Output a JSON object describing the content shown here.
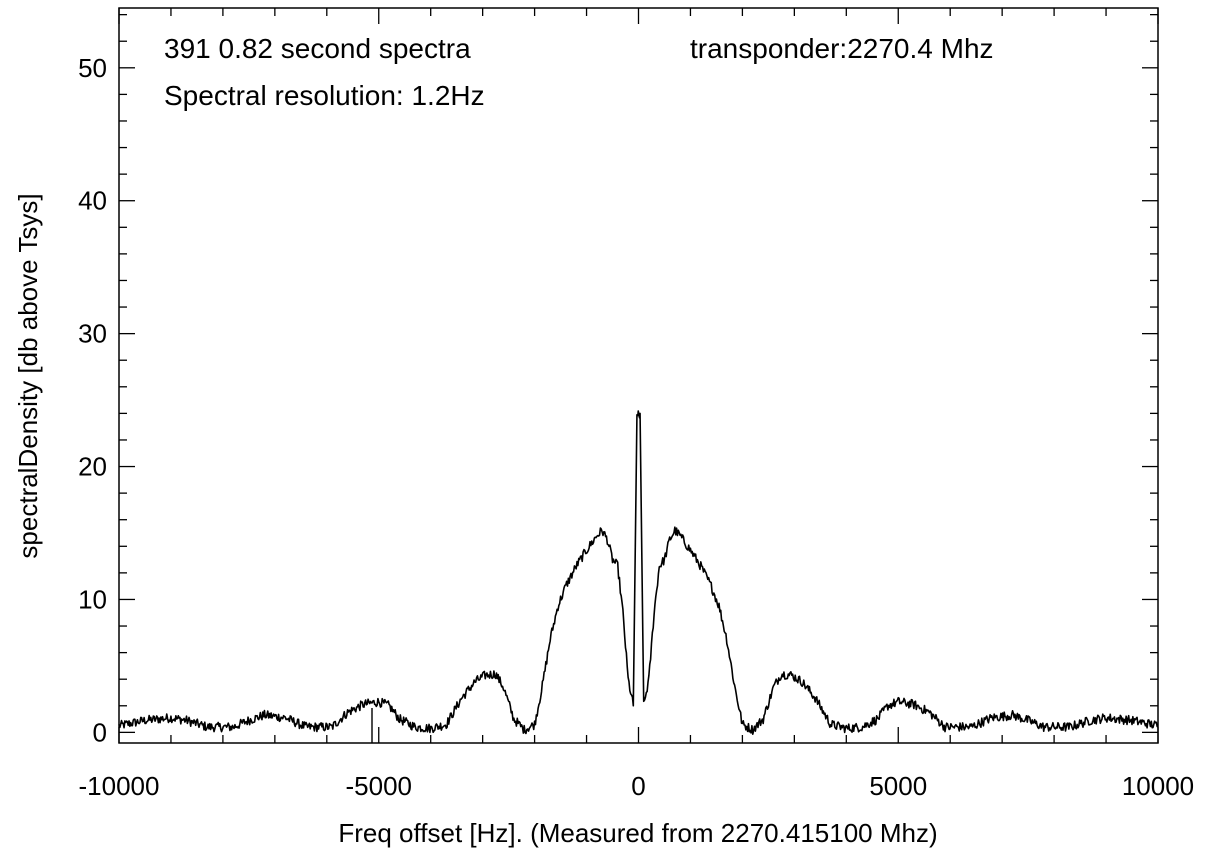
{
  "chart_data": {
    "type": "line",
    "title": "",
    "xlabel": "Freq offset [Hz]. (Measured from 2270.415100 Mhz)",
    "ylabel": "spectralDensity [db above Tsys]",
    "xlim": [
      -10000,
      10000
    ],
    "ylim": [
      -0.8,
      54.5
    ],
    "x_ticks": [
      -10000,
      -5000,
      0,
      5000,
      10000
    ],
    "x_tick_labels": [
      "-10000",
      "-5000",
      "0",
      "5000",
      "10000"
    ],
    "y_ticks": [
      0,
      10,
      20,
      30,
      40,
      50
    ],
    "y_tick_labels": [
      "0",
      "10",
      "20",
      "30",
      "40",
      "50"
    ],
    "grid": false,
    "line_color": "#000000",
    "annotations": [
      {
        "id": "spectra-count",
        "text": "391 0.82 second spectra"
      },
      {
        "id": "resolution",
        "text": "Spectral resolution: 1.2Hz"
      },
      {
        "id": "transponder",
        "text": "transponder:2270.4 Mhz"
      }
    ],
    "series": [
      {
        "x": [
          -10000,
          -9500,
          -9000,
          -8700,
          -8300,
          -7800,
          -7500,
          -7200,
          -6800,
          -6400,
          -5900,
          -5600,
          -5300,
          -5000,
          -4800,
          -4600,
          -4300,
          -4000,
          -3700,
          -3400,
          -3150,
          -2950,
          -2750,
          -2600,
          -2400,
          -2200,
          -2000,
          -1850,
          -1700,
          -1550,
          -1400,
          -1200,
          -1000,
          -800,
          -700,
          -600,
          -500,
          -400,
          -300,
          -200,
          -100,
          -30,
          -10,
          0,
          10,
          30,
          100,
          200,
          300,
          400,
          500,
          600,
          700,
          800,
          1000,
          1200,
          1400,
          1550,
          1700,
          1850,
          2000,
          2200,
          2400,
          2600,
          2750,
          2950,
          3150,
          3400,
          3700,
          4000,
          4300,
          4600,
          4800,
          5000,
          5300,
          5600,
          5900,
          6400,
          6800,
          7200,
          7500,
          7800,
          8300,
          8700,
          9000,
          9500,
          10000
        ],
        "values": [
          0.5,
          0.9,
          1.1,
          0.9,
          0.4,
          0.4,
          0.9,
          1.3,
          1.1,
          0.4,
          0.4,
          1.5,
          2.1,
          2.3,
          2.0,
          1.0,
          0.4,
          0.3,
          0.6,
          2.6,
          3.8,
          4.3,
          4.4,
          3.4,
          1.0,
          0.2,
          0.6,
          3.5,
          7.0,
          9.5,
          11.0,
          12.5,
          13.7,
          14.8,
          15.2,
          14.5,
          13.0,
          12.5,
          9.0,
          4.0,
          2.0,
          23.8,
          24.0,
          23.8,
          23.8,
          24.0,
          2.0,
          4.0,
          9.0,
          12.5,
          13.0,
          14.5,
          15.2,
          14.8,
          13.7,
          12.5,
          11.0,
          9.5,
          7.0,
          3.5,
          0.6,
          0.2,
          1.0,
          3.4,
          4.4,
          4.3,
          3.8,
          2.6,
          0.6,
          0.3,
          0.4,
          1.0,
          2.0,
          2.3,
          2.1,
          1.5,
          0.4,
          0.4,
          1.1,
          1.3,
          0.9,
          0.4,
          0.4,
          0.9,
          1.1,
          0.9,
          0.5
        ]
      }
    ]
  }
}
